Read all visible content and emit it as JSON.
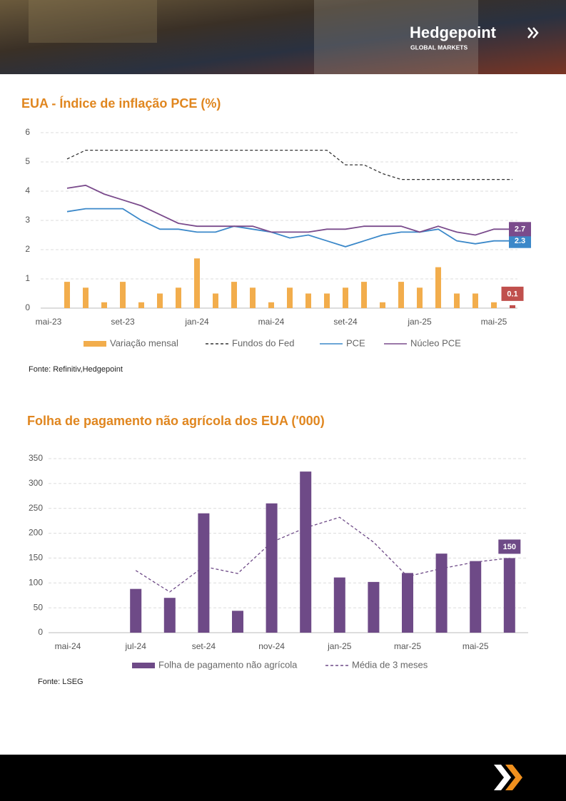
{
  "header": {
    "brand": "Hedgepoint",
    "tagline": "GLOBAL MARKETS"
  },
  "chart_data": [
    {
      "type": "combo",
      "title": "EUA - Índice de inflação PCE (%)",
      "source": "Fonte: Refinitiv,Hedgepoint",
      "categories": [
        "mai-23",
        null,
        null,
        null,
        "set-23",
        null,
        null,
        null,
        "jan-24",
        null,
        null,
        null,
        "mai-24",
        null,
        null,
        null,
        "set-24",
        null,
        null,
        null,
        "jan-25",
        null,
        null,
        null,
        "mai-25",
        null
      ],
      "ylim": [
        0,
        6
      ],
      "yticks": [
        0,
        1,
        2,
        3,
        4,
        5,
        6
      ],
      "grid": true,
      "series": [
        {
          "name": "Variação mensal",
          "kind": "bar",
          "color": "#f2ad4c",
          "highlight_color": "#c0504d",
          "end_label": true,
          "values": [
            null,
            0.9,
            0.7,
            0.2,
            0.9,
            0.2,
            0.5,
            0.7,
            1.7,
            0.5,
            0.9,
            0.7,
            0.2,
            0.7,
            0.5,
            0.5,
            0.7,
            0.9,
            0.2,
            0.9,
            0.7,
            1.4,
            0.5,
            0.5,
            0.2,
            0.1
          ]
        },
        {
          "name": "Fundos do Fed",
          "kind": "line",
          "dashed": true,
          "color": "#333333",
          "values": [
            null,
            5.1,
            5.4,
            5.4,
            5.4,
            5.4,
            5.4,
            5.4,
            5.4,
            5.4,
            5.4,
            5.4,
            5.4,
            5.4,
            5.4,
            5.4,
            4.9,
            4.9,
            4.6,
            4.4,
            4.4,
            4.4,
            4.4,
            4.4,
            4.4,
            4.4
          ]
        },
        {
          "name": "PCE",
          "kind": "line",
          "color": "#3b88c9",
          "end_label": true,
          "values": [
            null,
            3.3,
            3.4,
            3.4,
            3.4,
            3.0,
            2.7,
            2.7,
            2.6,
            2.6,
            2.8,
            2.7,
            2.6,
            2.4,
            2.5,
            2.3,
            2.1,
            2.3,
            2.5,
            2.6,
            2.6,
            2.7,
            2.3,
            2.2,
            2.3,
            2.3
          ]
        },
        {
          "name": "Núcleo PCE",
          "kind": "line",
          "color": "#7a4b8c",
          "end_label": true,
          "values": [
            null,
            4.1,
            4.2,
            3.9,
            3.7,
            3.5,
            3.2,
            2.9,
            2.8,
            2.8,
            2.8,
            2.8,
            2.6,
            2.6,
            2.6,
            2.7,
            2.7,
            2.8,
            2.8,
            2.8,
            2.6,
            2.8,
            2.6,
            2.5,
            2.7,
            2.7
          ]
        }
      ]
    },
    {
      "type": "combo",
      "title": "Folha de pagamento não agrícola dos EUA ('000)",
      "source": "Fonte: LSEG",
      "categories": [
        "mai-24",
        null,
        "jul-24",
        null,
        "set-24",
        null,
        "nov-24",
        null,
        "jan-25",
        null,
        "mar-25",
        null,
        "mai-25",
        null
      ],
      "ylim": [
        0,
        350
      ],
      "yticks": [
        0,
        50,
        100,
        150,
        200,
        250,
        300,
        350
      ],
      "grid": true,
      "series": [
        {
          "name": "Folha de pagamento não agrícola",
          "kind": "bar",
          "color": "#6e4a87",
          "end_label": true,
          "values": [
            null,
            null,
            88,
            70,
            240,
            44,
            260,
            324,
            111,
            102,
            120,
            159,
            144,
            150
          ]
        },
        {
          "name": "Média de 3 meses",
          "kind": "line",
          "dashed": true,
          "color": "#6e4a87",
          "values": [
            null,
            null,
            125,
            82,
            133,
            119,
            182,
            211,
            232,
            182,
            113,
            129,
            142,
            150
          ]
        }
      ]
    }
  ]
}
